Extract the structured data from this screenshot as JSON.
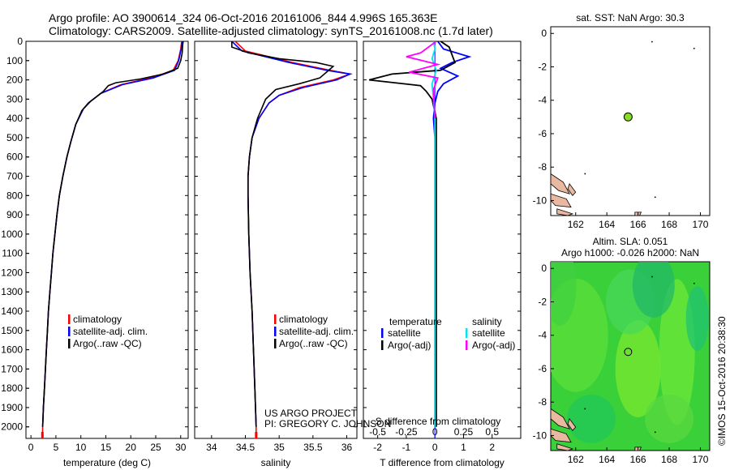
{
  "header": {
    "line1": "Argo profile: AO 3900614_324 06-Oct-2016 20161006_844 4.996S 165.363E",
    "line2": "Climatology: CARS2009. Satellite-adjusted climatology: synTS_20161008.nc (1.7d later)"
  },
  "credit": {
    "line1": "US ARGO PROJECT",
    "line2": "PI: GREGORY C. JOHNSON"
  },
  "watermark": "©IMOS 15-Oct-2016 20:38:30",
  "colors": {
    "climatology": "#ff0000",
    "satellite": "#0000ff",
    "argo": "#000000",
    "sal_satellite": "#00e5ee",
    "sal_argo": "#ff00ff",
    "ocean": "#3ad03a",
    "land": "#e8b8a0",
    "float": "#88dd22"
  },
  "chart_data": [
    {
      "type": "line",
      "id": "temperature",
      "xlabel": "temperature (deg C)",
      "xlim": [
        -1,
        31.5
      ],
      "ylim": [
        2060,
        0
      ],
      "xticks": [
        0,
        5,
        10,
        15,
        20,
        25,
        30
      ],
      "yticks": [
        0,
        100,
        200,
        300,
        400,
        500,
        600,
        700,
        800,
        900,
        1000,
        1100,
        1200,
        1300,
        1400,
        1500,
        1600,
        1700,
        1800,
        1900,
        2000
      ],
      "legend": [
        "climatology",
        "satellite-adj. clim.",
        "Argo(..raw -QC)"
      ],
      "series": [
        {
          "name": "climatology",
          "color": "#ff0000",
          "points": [
            [
              30.2,
              0
            ],
            [
              30.0,
              40
            ],
            [
              29.5,
              100
            ],
            [
              28.5,
              150
            ],
            [
              24,
              190
            ],
            [
              18,
              225
            ],
            [
              14,
              270
            ],
            [
              12,
              310
            ],
            [
              10.5,
              350
            ],
            [
              9,
              430
            ],
            [
              8,
              520
            ],
            [
              7.2,
              600
            ],
            [
              6.4,
              700
            ],
            [
              5.7,
              800
            ],
            [
              5.2,
              900
            ],
            [
              4.8,
              1000
            ],
            [
              4.4,
              1100
            ],
            [
              4.1,
              1200
            ],
            [
              3.8,
              1300
            ],
            [
              3.5,
              1400
            ],
            [
              3.3,
              1500
            ],
            [
              3.1,
              1600
            ],
            [
              2.9,
              1700
            ],
            [
              2.7,
              1800
            ],
            [
              2.5,
              1900
            ],
            [
              2.35,
              2000
            ],
            [
              2.3,
              2060
            ]
          ]
        },
        {
          "name": "satellite-adj. clim.",
          "color": "#0000ff",
          "points": [
            [
              30.3,
              0
            ],
            [
              30.1,
              40
            ],
            [
              29.6,
              100
            ],
            [
              28.8,
              150
            ],
            [
              24.5,
              190
            ],
            [
              18.3,
              225
            ],
            [
              14,
              270
            ],
            [
              12,
              310
            ],
            [
              10.5,
              350
            ],
            [
              9,
              430
            ],
            [
              8,
              520
            ],
            [
              7.2,
              600
            ],
            [
              6.4,
              700
            ],
            [
              5.7,
              800
            ],
            [
              5.2,
              900
            ],
            [
              4.8,
              1000
            ],
            [
              4.4,
              1100
            ],
            [
              4.1,
              1200
            ],
            [
              3.8,
              1300
            ],
            [
              3.5,
              1400
            ],
            [
              3.3,
              1500
            ],
            [
              3.1,
              1600
            ],
            [
              2.9,
              1700
            ],
            [
              2.7,
              1800
            ],
            [
              2.5,
              1900
            ],
            [
              2.35,
              2000
            ]
          ]
        },
        {
          "name": "Argo(..raw -QC)",
          "color": "#000000",
          "points": [
            [
              30.5,
              0
            ],
            [
              30.4,
              20
            ],
            [
              30.3,
              60
            ],
            [
              30.0,
              100
            ],
            [
              29.4,
              140
            ],
            [
              26.5,
              170
            ],
            [
              22,
              195
            ],
            [
              17,
              215
            ],
            [
              15.5,
              230
            ],
            [
              14.5,
              260
            ],
            [
              13,
              290
            ],
            [
              11.5,
              320
            ],
            [
              10.2,
              360
            ],
            [
              9,
              430
            ],
            [
              8,
              520
            ],
            [
              7.2,
              600
            ],
            [
              6.4,
              700
            ],
            [
              5.7,
              800
            ],
            [
              5.2,
              900
            ],
            [
              4.8,
              1000
            ],
            [
              4.4,
              1100
            ],
            [
              4.1,
              1200
            ],
            [
              3.8,
              1300
            ],
            [
              3.5,
              1400
            ],
            [
              3.3,
              1500
            ],
            [
              3.1,
              1600
            ],
            [
              2.9,
              1700
            ],
            [
              2.7,
              1800
            ],
            [
              2.5,
              1900
            ],
            [
              2.35,
              2000
            ]
          ]
        }
      ]
    },
    {
      "type": "line",
      "id": "salinity",
      "xlabel": "salinity",
      "xlim": [
        33.75,
        36.15
      ],
      "ylim": [
        2060,
        0
      ],
      "xticks": [
        34,
        34.5,
        35,
        35.5,
        36
      ],
      "legend": [
        "climatology",
        "satellite-adj. clim.",
        "Argo(..raw -QC)"
      ],
      "series": [
        {
          "name": "climatology",
          "color": "#ff0000",
          "points": [
            [
              34.35,
              0
            ],
            [
              34.5,
              50
            ],
            [
              35.2,
              110
            ],
            [
              35.75,
              150
            ],
            [
              36.05,
              170
            ],
            [
              35.8,
              200
            ],
            [
              35.3,
              240
            ],
            [
              35.0,
              280
            ],
            [
              34.85,
              320
            ],
            [
              34.7,
              400
            ],
            [
              34.6,
              500
            ],
            [
              34.56,
              600
            ],
            [
              34.54,
              700
            ],
            [
              34.54,
              800
            ],
            [
              34.55,
              1000
            ],
            [
              34.57,
              1200
            ],
            [
              34.6,
              1400
            ],
            [
              34.62,
              1600
            ],
            [
              34.64,
              1800
            ],
            [
              34.66,
              2000
            ],
            [
              34.66,
              2060
            ]
          ]
        },
        {
          "name": "satellite-adj. clim.",
          "color": "#0000ff",
          "points": [
            [
              34.3,
              0
            ],
            [
              34.45,
              50
            ],
            [
              35.15,
              110
            ],
            [
              35.7,
              150
            ],
            [
              36.05,
              170
            ],
            [
              35.85,
              200
            ],
            [
              35.35,
              240
            ],
            [
              35.0,
              280
            ],
            [
              34.85,
              320
            ],
            [
              34.7,
              400
            ],
            [
              34.6,
              500
            ],
            [
              34.56,
              600
            ],
            [
              34.54,
              700
            ],
            [
              34.54,
              800
            ],
            [
              34.55,
              1000
            ],
            [
              34.57,
              1200
            ],
            [
              34.6,
              1400
            ],
            [
              34.62,
              1600
            ],
            [
              34.64,
              1800
            ],
            [
              34.66,
              2000
            ]
          ]
        },
        {
          "name": "Argo(..raw -QC)",
          "color": "#000000",
          "points": [
            [
              34.3,
              0
            ],
            [
              34.3,
              30
            ],
            [
              34.55,
              60
            ],
            [
              35.0,
              90
            ],
            [
              35.55,
              110
            ],
            [
              35.8,
              130
            ],
            [
              35.7,
              160
            ],
            [
              35.6,
              190
            ],
            [
              35.3,
              220
            ],
            [
              34.95,
              250
            ],
            [
              34.8,
              300
            ],
            [
              34.68,
              400
            ],
            [
              34.6,
              500
            ],
            [
              34.56,
              600
            ],
            [
              34.54,
              700
            ],
            [
              34.54,
              800
            ],
            [
              34.55,
              1000
            ],
            [
              34.57,
              1200
            ],
            [
              34.6,
              1400
            ],
            [
              34.62,
              1600
            ],
            [
              34.64,
              1800
            ],
            [
              34.66,
              2000
            ]
          ]
        }
      ]
    },
    {
      "type": "line",
      "id": "difference",
      "xlabel": "T difference from climatology",
      "xlabel_top": "S difference from climatology",
      "xlim": [
        -2.5,
        3.0
      ],
      "ylim": [
        2060,
        0
      ],
      "xticks_T": [
        -2,
        -1,
        0,
        1,
        2
      ],
      "xticks_S": [
        -0.5,
        -0.25,
        0,
        0.25,
        0.5
      ],
      "legend_left_title": "temperature",
      "legend_right_title": "salinity",
      "legend_left": [
        "satellite",
        "Argo(-adj)"
      ],
      "legend_right": [
        "satellite",
        "Argo(-adj)"
      ],
      "series": [
        {
          "name": "T satellite",
          "color": "#0000ff",
          "points": [
            [
              0.1,
              0
            ],
            [
              0.3,
              40
            ],
            [
              1.2,
              80
            ],
            [
              0.6,
              110
            ],
            [
              0.2,
              140
            ],
            [
              0.8,
              180
            ],
            [
              0.3,
              220
            ],
            [
              0.1,
              260
            ],
            [
              0.0,
              320
            ],
            [
              -0.05,
              400
            ],
            [
              0,
              500
            ],
            [
              0,
              800
            ],
            [
              0,
              1200
            ],
            [
              0,
              2000
            ]
          ]
        },
        {
          "name": "T Argo(-adj)",
          "color": "#000000",
          "points": [
            [
              0.2,
              0
            ],
            [
              0.5,
              30
            ],
            [
              0.6,
              70
            ],
            [
              0.7,
              110
            ],
            [
              0.2,
              150
            ],
            [
              -1.5,
              170
            ],
            [
              -2.3,
              200
            ],
            [
              -0.5,
              230
            ],
            [
              -0.3,
              260
            ],
            [
              -0.1,
              300
            ],
            [
              0.05,
              400
            ],
            [
              0.05,
              600
            ],
            [
              0.05,
              800
            ],
            [
              0.05,
              1100
            ],
            [
              0.05,
              1200
            ],
            [
              0.05,
              2000
            ]
          ]
        },
        {
          "name": "S satellite",
          "color": "#00e5ee",
          "points": [
            [
              -0.05,
              0
            ],
            [
              0.0,
              40
            ],
            [
              -0.1,
              90
            ],
            [
              0.05,
              150
            ],
            [
              -0.1,
              220
            ],
            [
              -0.05,
              300
            ],
            [
              0,
              400
            ],
            [
              0,
              800
            ],
            [
              0,
              1400
            ],
            [
              0,
              2000
            ]
          ]
        },
        {
          "name": "S Argo(-adj)",
          "color": "#ff00ff",
          "points": [
            [
              0.05,
              0
            ],
            [
              -0.5,
              60
            ],
            [
              -1.0,
              80
            ],
            [
              0.1,
              120
            ],
            [
              -0.9,
              160
            ],
            [
              0.1,
              190
            ],
            [
              -0.05,
              250
            ],
            [
              0,
              400
            ]
          ]
        }
      ]
    }
  ],
  "maps": [
    {
      "id": "sst-map",
      "title": "sat. SST: NaN Argo: 30.3",
      "xlim": [
        160.4,
        170.6
      ],
      "ylim": [
        -10.9,
        0.4
      ],
      "xticks": [
        162,
        164,
        166,
        168,
        170
      ],
      "yticks": [
        0,
        -2,
        -4,
        -6,
        -8,
        -10
      ],
      "float": {
        "lon": 165.363,
        "lat": -4.996
      }
    },
    {
      "id": "sla-map",
      "title": "Altim. SLA: 0.051",
      "title2": "Argo h1000: -0.026 h2000: NaN",
      "xlim": [
        160.4,
        170.6
      ],
      "ylim": [
        -10.9,
        0.4
      ],
      "xticks": [
        162,
        164,
        166,
        168,
        170
      ],
      "yticks": [
        0,
        -2,
        -4,
        -6,
        -8,
        -10
      ],
      "float": {
        "lon": 165.363,
        "lat": -4.996
      }
    }
  ]
}
